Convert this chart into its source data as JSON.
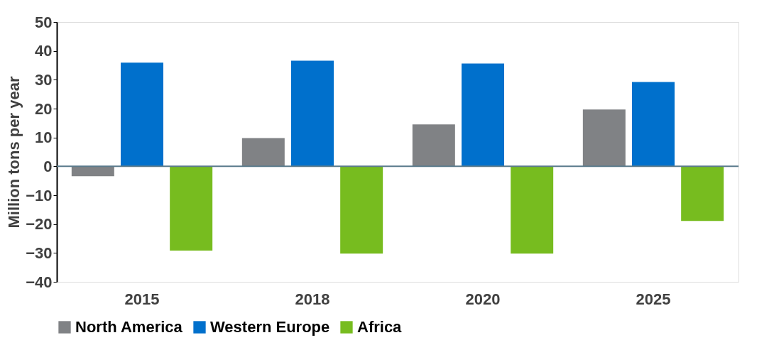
{
  "chart_data": {
    "type": "bar",
    "ylabel": "Million tons per year",
    "categories": [
      "2015",
      "2018",
      "2020",
      "2025"
    ],
    "series": [
      {
        "name": "North America",
        "color": "#808285",
        "values": [
          -3.4,
          9.8,
          14.5,
          19.7
        ]
      },
      {
        "name": "Western Europe",
        "color": "#0070cc",
        "values": [
          35.9,
          36.6,
          35.6,
          29.2
        ]
      },
      {
        "name": "Africa",
        "color": "#77bc1f",
        "values": [
          -29.2,
          -30.2,
          -30.2,
          -18.9
        ]
      }
    ],
    "ylim": [
      -40,
      50
    ],
    "yticks": [
      -40,
      -30,
      -20,
      -10,
      0,
      10,
      20,
      30,
      40,
      50
    ],
    "grid": false,
    "legend": "bottom",
    "ref_lines": [
      {
        "axis": "y",
        "value": 0,
        "color": "#5b7b8c"
      }
    ]
  }
}
